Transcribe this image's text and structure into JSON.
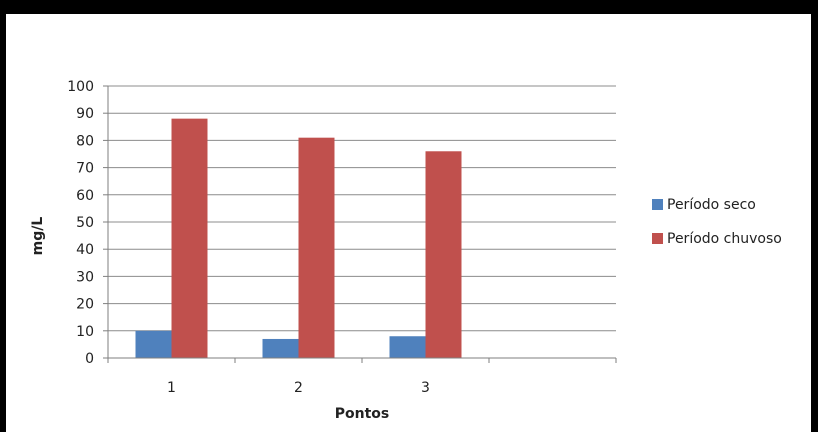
{
  "chart_data": {
    "type": "bar",
    "categories": [
      "1",
      "2",
      "3",
      ""
    ],
    "series": [
      {
        "name": "Período seco",
        "values": [
          10,
          7,
          8,
          null
        ],
        "color": "#4f81bd"
      },
      {
        "name": "Período chuvoso",
        "values": [
          88,
          81,
          76,
          null
        ],
        "color": "#c0504d"
      }
    ],
    "xlabel": "Pontos",
    "ylabel": "mg/L",
    "ylim": [
      0,
      100
    ],
    "yticks": [
      "0",
      "10",
      "20",
      "30",
      "40",
      "50",
      "60",
      "70",
      "80",
      "90",
      "100"
    ],
    "grid": true,
    "legend_position": "right"
  },
  "colors": {
    "frame": "#000000",
    "gridline": "#8c8c8c",
    "axis": "#7f7f7f"
  }
}
